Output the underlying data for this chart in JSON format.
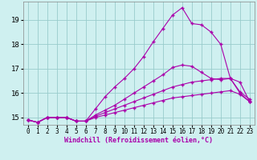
{
  "xlabel": "Windchill (Refroidissement éolien,°C)",
  "background_color": "#cff0f0",
  "line_color": "#aa00aa",
  "grid_color": "#99cccc",
  "xlim": [
    -0.5,
    23.5
  ],
  "ylim": [
    14.7,
    19.75
  ],
  "xticks": [
    0,
    1,
    2,
    3,
    4,
    5,
    6,
    7,
    8,
    9,
    10,
    11,
    12,
    13,
    14,
    15,
    16,
    17,
    18,
    19,
    20,
    21,
    22,
    23
  ],
  "yticks": [
    15,
    16,
    17,
    18,
    19
  ],
  "series": [
    [
      14.9,
      14.8,
      15.0,
      15.0,
      15.0,
      14.85,
      14.85,
      15.35,
      15.85,
      16.25,
      16.6,
      17.0,
      17.5,
      18.1,
      18.65,
      19.2,
      19.5,
      18.85,
      18.8,
      18.5,
      18.0,
      16.6,
      16.05,
      15.75
    ],
    [
      14.9,
      14.8,
      15.0,
      15.0,
      15.0,
      14.85,
      14.85,
      15.1,
      15.3,
      15.5,
      15.75,
      16.0,
      16.25,
      16.5,
      16.75,
      17.05,
      17.15,
      17.1,
      16.85,
      16.6,
      16.55,
      16.6,
      16.0,
      15.65
    ],
    [
      14.9,
      14.8,
      15.0,
      15.0,
      15.0,
      14.85,
      14.85,
      15.05,
      15.2,
      15.35,
      15.5,
      15.65,
      15.8,
      15.95,
      16.1,
      16.25,
      16.35,
      16.45,
      16.5,
      16.55,
      16.6,
      16.6,
      16.45,
      15.65
    ],
    [
      14.9,
      14.8,
      15.0,
      15.0,
      15.0,
      14.85,
      14.85,
      15.0,
      15.1,
      15.2,
      15.3,
      15.4,
      15.5,
      15.6,
      15.7,
      15.8,
      15.85,
      15.9,
      15.95,
      16.0,
      16.05,
      16.1,
      15.95,
      15.65
    ]
  ],
  "marker": "+",
  "markersize": 3.5,
  "linewidth": 0.8
}
